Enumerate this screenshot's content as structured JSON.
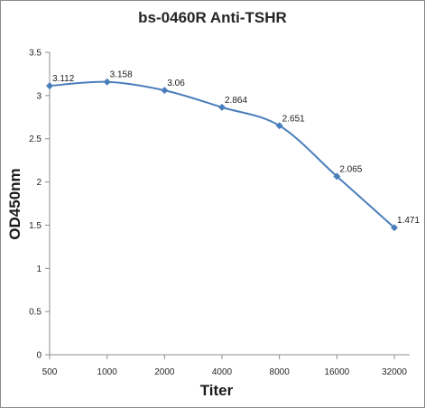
{
  "chart_data": {
    "type": "line",
    "title": "bs-0460R Anti-TSHR",
    "xlabel": "Titer",
    "ylabel": "OD450nm",
    "categories": [
      "500",
      "1000",
      "2000",
      "4000",
      "8000",
      "16000",
      "32000"
    ],
    "series": [
      {
        "values": [
          3.112,
          3.158,
          3.06,
          2.864,
          2.651,
          2.065,
          1.471
        ],
        "color": "#4a7ebb"
      }
    ],
    "data_labels": [
      "3.112",
      "3.158",
      "3.06",
      "2.864",
      "2.651",
      "2.065",
      "1.471"
    ],
    "ylim": [
      0,
      3.5
    ],
    "yticks": [
      "0",
      "0.5",
      "1",
      "1.5",
      "2",
      "2.5",
      "3",
      "3.5"
    ],
    "grid": false,
    "legend": "none",
    "marker": "diamond",
    "smooth": true
  }
}
